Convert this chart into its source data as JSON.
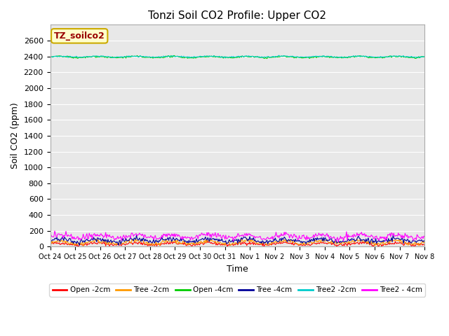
{
  "title": "Tonzi Soil CO2 Profile: Upper CO2",
  "xlabel": "Time",
  "ylabel": "Soil CO2 (ppm)",
  "ylim": [
    0,
    2800
  ],
  "yticks": [
    0,
    200,
    400,
    600,
    800,
    1000,
    1200,
    1400,
    1600,
    1800,
    2000,
    2200,
    2400,
    2600
  ],
  "xtick_labels": [
    "Oct 24",
    "Oct 25",
    "Oct 26",
    "Oct 27",
    "Oct 28",
    "Oct 29",
    "Oct 30",
    "Oct 31",
    "Nov 1",
    "Nov 2",
    "Nov 3",
    "Nov 4",
    "Nov 5",
    "Nov 6",
    "Nov 7",
    "Nov 8"
  ],
  "n_points": 500,
  "series": [
    {
      "label": "Open -2cm",
      "color": "#ff0000",
      "base": 35,
      "amp": 12,
      "noise": 10
    },
    {
      "label": "Tree -2cm",
      "color": "#ff9900",
      "base": 55,
      "amp": 18,
      "noise": 12
    },
    {
      "label": "Open -4cm",
      "color": "#00cc00",
      "base": 2392,
      "amp": 8,
      "noise": 5
    },
    {
      "label": "Tree -4cm",
      "color": "#000099",
      "base": 80,
      "amp": 18,
      "noise": 15
    },
    {
      "label": "Tree2 -2cm",
      "color": "#00cccc",
      "base": 2397,
      "amp": 6,
      "noise": 4
    },
    {
      "label": "Tree2 - 4cm",
      "color": "#ff00ff",
      "base": 130,
      "amp": 22,
      "noise": 18
    }
  ],
  "legend_box_color": "#ffffff",
  "legend_box_edge": "#cccccc",
  "annotation_label": "TZ_soilco2",
  "annotation_color": "#990000",
  "annotation_bg": "#ffffcc",
  "annotation_edge": "#ccaa00",
  "bg_color": "#e8e8e8",
  "title_fontsize": 11,
  "axis_fontsize": 9,
  "tick_fontsize": 8
}
